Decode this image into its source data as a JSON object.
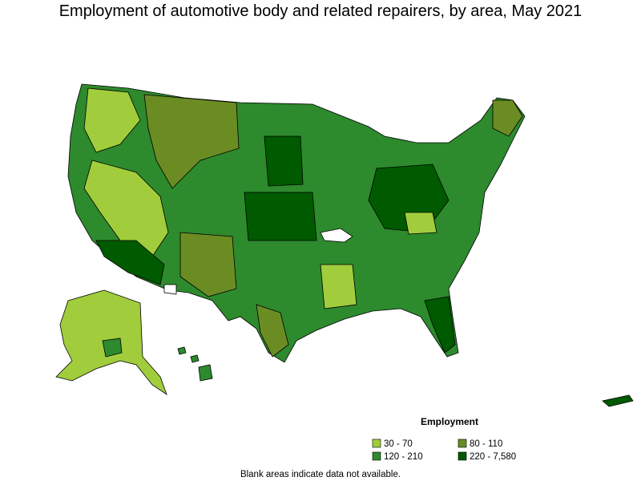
{
  "title": "Employment of automotive body and related repairers, by area, May 2021",
  "legend": {
    "title": "Employment",
    "items": [
      {
        "label": "30 - 70",
        "color": "#a1cd3c"
      },
      {
        "label": "80 - 110",
        "color": "#6b8c23"
      },
      {
        "label": "120 - 210",
        "color": "#2d8a2d"
      },
      {
        "label": "220 - 7,580",
        "color": "#005a00"
      }
    ]
  },
  "footnote": "Blank areas indicate data not available."
}
